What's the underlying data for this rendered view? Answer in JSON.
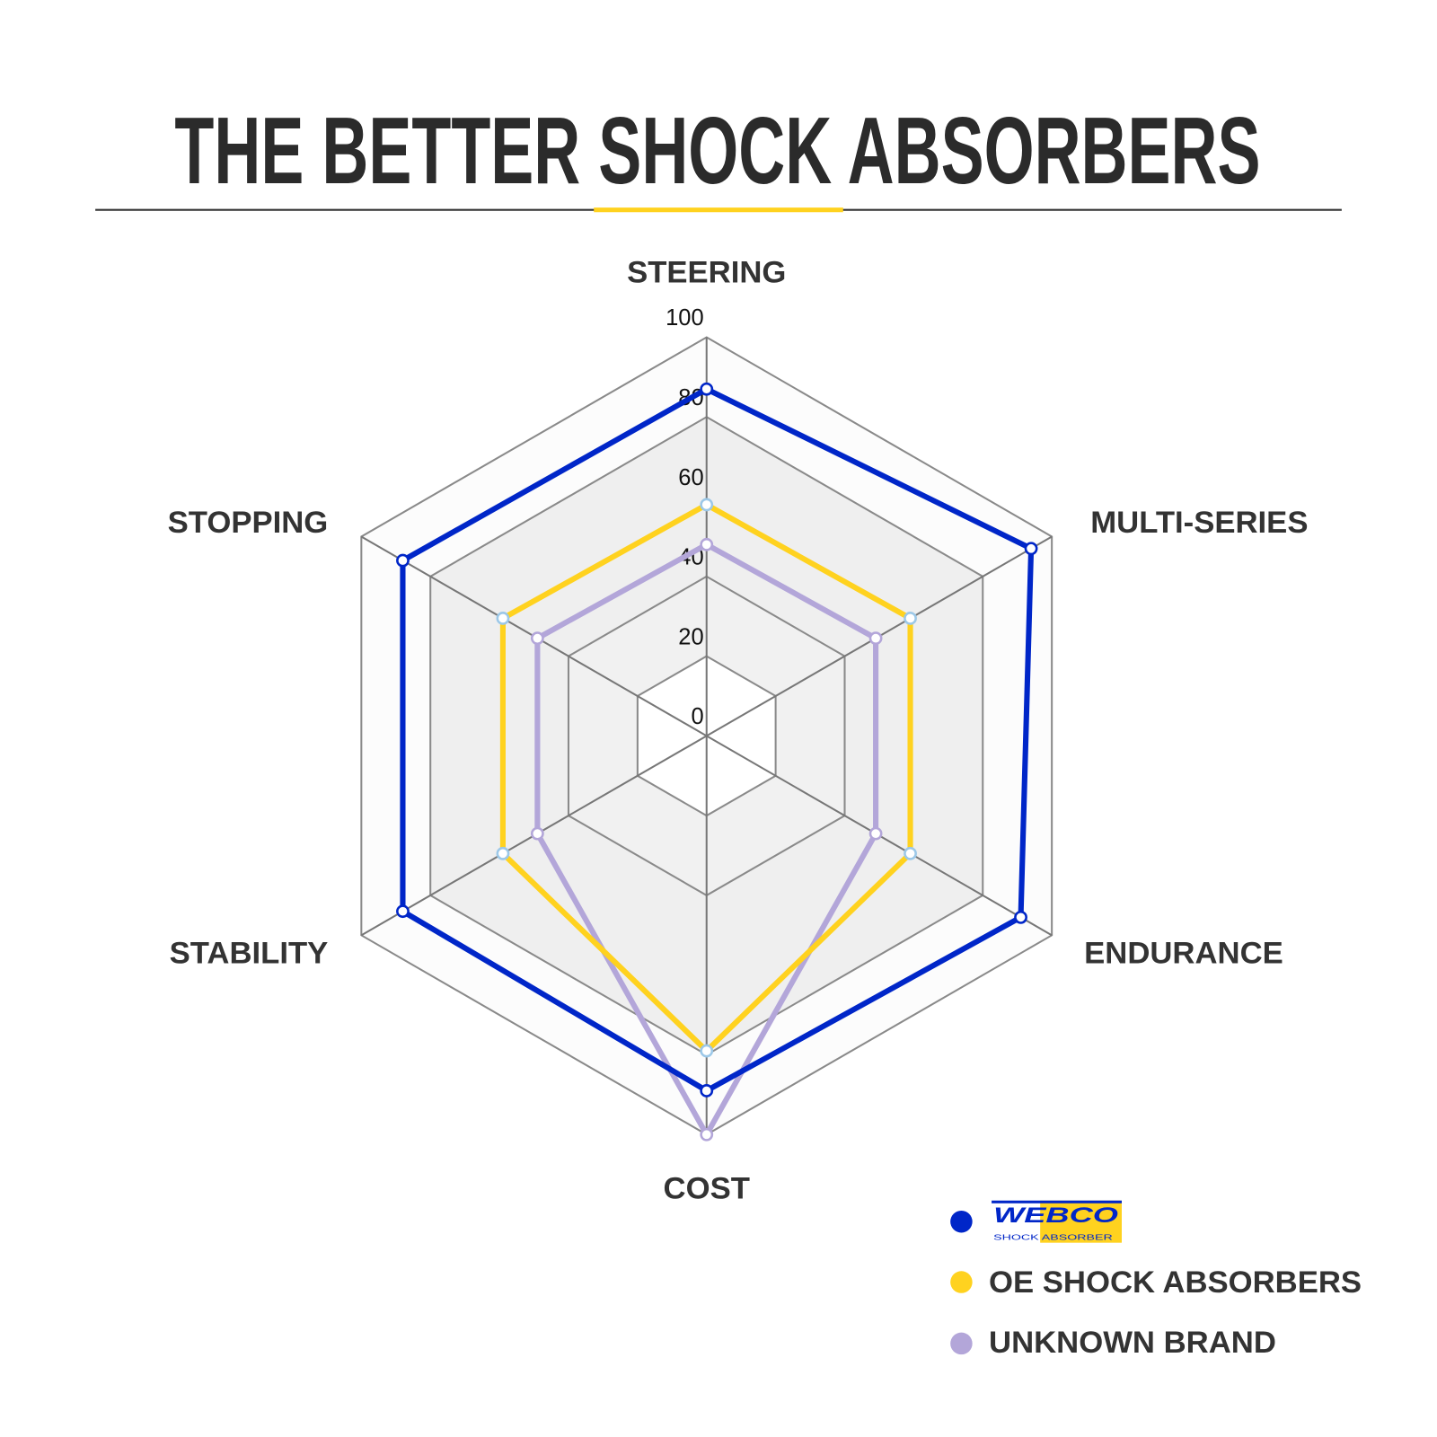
{
  "chart_data": {
    "type": "radar",
    "title": "THE BETTER SHOCK ABSORBERS",
    "categories": [
      "STEERING",
      "MULTI-SERIES",
      "ENDURANCE",
      "COST",
      "STABILITY",
      "STOPPING"
    ],
    "rlim": [
      0,
      100
    ],
    "ticks": [
      "0",
      "20",
      "40",
      "60",
      "80",
      "100"
    ],
    "grid": true,
    "legend_position": "bottom-right",
    "series": [
      {
        "name": "WEBCO",
        "subtitle": "SHOCK ABSORBER",
        "color": "#0026c8",
        "values": [
          87,
          94,
          91,
          89,
          88,
          88
        ]
      },
      {
        "name": "OE SHOCK ABSORBERS",
        "color": "#ffd21f",
        "values": [
          58,
          59,
          59,
          79,
          59,
          59
        ]
      },
      {
        "name": "UNKNOWN BRAND",
        "color": "#b3a6d9",
        "values": [
          48,
          49,
          49,
          100,
          49,
          49
        ]
      }
    ]
  }
}
